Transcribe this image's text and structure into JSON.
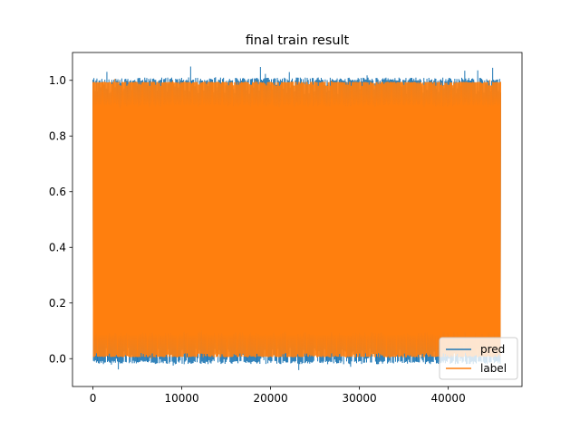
{
  "chart_data": {
    "type": "line",
    "title": "final train result",
    "xlabel": "",
    "ylabel": "",
    "xlim": [
      -2300,
      48300
    ],
    "ylim": [
      -0.1,
      1.1
    ],
    "x_ticks": [
      0,
      10000,
      20000,
      30000,
      40000
    ],
    "x_tick_labels": [
      "0",
      "10000",
      "20000",
      "30000",
      "40000"
    ],
    "y_ticks": [
      0.0,
      0.2,
      0.4,
      0.6,
      0.8,
      1.0
    ],
    "y_tick_labels": [
      "0.0",
      "0.2",
      "0.4",
      "0.6",
      "0.8",
      "1.0"
    ],
    "x_range": [
      0,
      45900
    ],
    "grid": false,
    "legend_position": "lower right",
    "series": [
      {
        "name": "pred",
        "color": "#1f77b4",
        "description_values": "dense oscillation between approximately -0.05 and 1.05 across all samples",
        "min": -0.05,
        "max": 1.05
      },
      {
        "name": "label",
        "color": "#ff7f0e",
        "description_values": "dense binary-like oscillation between 0.0 and 1.0 across all samples",
        "min": 0.0,
        "max": 1.0
      }
    ]
  }
}
